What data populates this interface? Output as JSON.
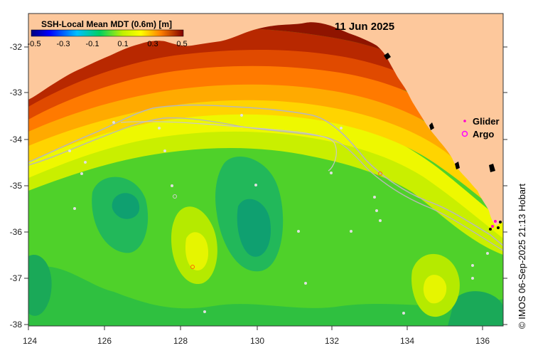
{
  "map": {
    "date": "11 Jun 2025",
    "credit": "© IMOS 06-Sep-2025 21:13 Hobart",
    "colorbar": {
      "title": "SSH-Local Mean MDT (0.6m) [m]",
      "ticks": [
        "-0.5",
        "-0.3",
        "-0.1",
        "0.1",
        "0.3",
        "0.5"
      ],
      "range": [
        -0.5,
        0.5
      ]
    },
    "lon_ticks": [
      "124",
      "126",
      "128",
      "130",
      "132",
      "134",
      "136"
    ],
    "lat_ticks": [
      "-32",
      "-33",
      "-34",
      "-35",
      "-36",
      "-37",
      "-38"
    ],
    "legend": {
      "glider": "Glider",
      "argo": "Argo",
      "glider_color": "#ff00cc",
      "argo_color": "#ff00ff"
    },
    "colors": {
      "land": "#fdc89c",
      "track": "#b8b8b8",
      "contour": "#e0e0e0"
    }
  }
}
